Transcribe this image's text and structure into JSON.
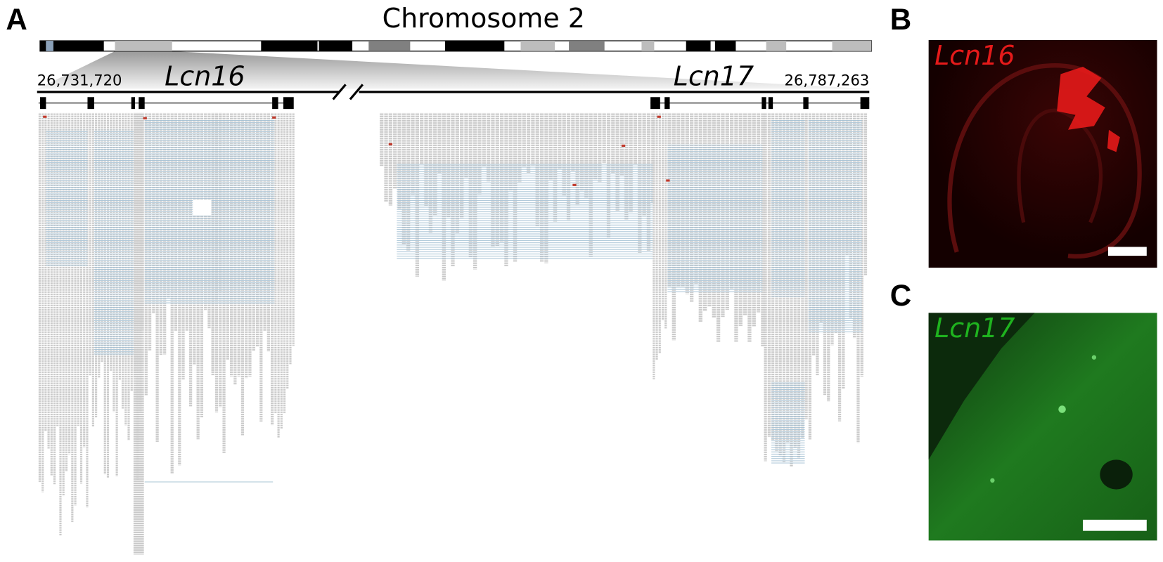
{
  "panel_a": {
    "label": "A",
    "title": "Chromosome 2",
    "start": "26,731,720",
    "end": "26,787,263",
    "genes": [
      "Lcn16",
      "Lcn17"
    ]
  },
  "panel_b": {
    "label": "B",
    "gene": "Lcn16"
  },
  "panel_c": {
    "label": "C",
    "gene": "Lcn17"
  }
}
